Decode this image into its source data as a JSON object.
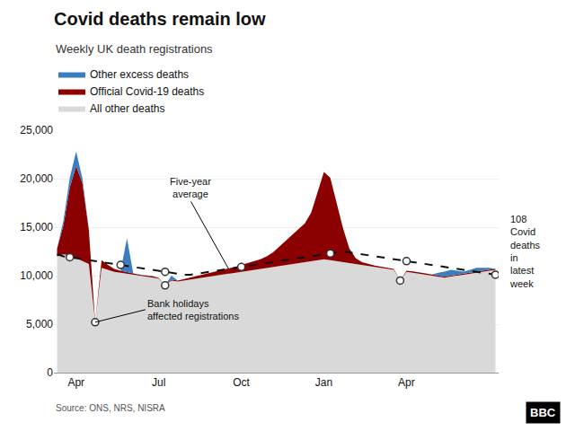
{
  "chart_data": {
    "type": "area",
    "stacked": true,
    "title": "Covid deaths remain low",
    "subtitle": "Weekly UK death registrations",
    "source": "Source: ONS, NRS, NISRA",
    "x": [
      0,
      1,
      2,
      3,
      4,
      5,
      6,
      7,
      8,
      9,
      10,
      11,
      12,
      13,
      14,
      15,
      16,
      17,
      18,
      19,
      20,
      21,
      22,
      23,
      24,
      25,
      26,
      27,
      28,
      29,
      30,
      31,
      32,
      33,
      34,
      35,
      36,
      37,
      38,
      39,
      40,
      41,
      42,
      43,
      44,
      45,
      46,
      47,
      48,
      49,
      50,
      51,
      52,
      53,
      54,
      55,
      56,
      57,
      58,
      59,
      60,
      61,
      62,
      63,
      64,
      65,
      66,
      67,
      68,
      69
    ],
    "xlim": [
      -0.5,
      69.5
    ],
    "xticks": [
      {
        "value": 3,
        "label": "Apr"
      },
      {
        "value": 16,
        "label": "Jul"
      },
      {
        "value": 29,
        "label": "Oct"
      },
      {
        "value": 42,
        "label": "Jan"
      },
      {
        "value": 55,
        "label": "Apr"
      }
    ],
    "ylim": [
      0,
      25000
    ],
    "yticks": [
      0,
      {
        "value": 5000,
        "label": "5,000"
      },
      {
        "value": 10000,
        "label": "10,000"
      },
      {
        "value": 15000,
        "label": "15,000"
      },
      {
        "value": 20000,
        "label": "20,000"
      },
      {
        "value": 25000,
        "label": "25,000"
      }
    ],
    "grid": "y",
    "series": [
      {
        "name": "All other deaths",
        "color": "#d9d9d9",
        "type": "area",
        "values": [
          12000,
          12200,
          12100,
          11800,
          11500,
          11200,
          5200,
          10800,
          10600,
          10400,
          10300,
          10200,
          10100,
          10000,
          9900,
          9800,
          9700,
          9000,
          9500,
          9400,
          9500,
          9600,
          9700,
          9800,
          9900,
          10000,
          10100,
          10200,
          10300,
          10400,
          10500,
          10600,
          10700,
          10800,
          10900,
          11000,
          11100,
          11200,
          11300,
          11400,
          11500,
          11600,
          11700,
          11600,
          11500,
          11400,
          11300,
          11200,
          11100,
          11000,
          10900,
          10800,
          10700,
          10600,
          9500,
          10400,
          10300,
          10200,
          10100,
          10000,
          9900,
          9800,
          9900,
          10000,
          10100,
          10200,
          10300,
          10400,
          10500,
          10600
        ]
      },
      {
        "name": "Official Covid-19 deaths",
        "color": "#8B0000",
        "type": "area",
        "values": [
          800,
          3000,
          7000,
          9500,
          8000,
          3500,
          0,
          800,
          500,
          300,
          200,
          150,
          100,
          100,
          100,
          150,
          80,
          0,
          100,
          100,
          150,
          200,
          250,
          300,
          350,
          400,
          450,
          500,
          600,
          700,
          800,
          900,
          1000,
          1200,
          1500,
          2000,
          2500,
          3000,
          3500,
          4000,
          5000,
          7000,
          9000,
          8500,
          6000,
          3500,
          1500,
          600,
          300,
          200,
          150,
          120,
          110,
          100,
          0,
          110,
          130,
          150,
          130,
          120,
          110,
          108,
          108,
          108,
          108,
          108,
          108,
          108,
          108,
          108
        ]
      },
      {
        "name": "Other excess deaths",
        "color": "#3a7ebf",
        "type": "area",
        "values": [
          0,
          500,
          1000,
          1500,
          500,
          0,
          0,
          0,
          0,
          0,
          0,
          3500,
          0,
          0,
          0,
          0,
          0,
          0,
          400,
          0,
          0,
          0,
          0,
          0,
          0,
          0,
          0,
          0,
          0,
          0,
          0,
          0,
          0,
          0,
          0,
          0,
          0,
          0,
          0,
          0,
          0,
          0,
          0,
          0,
          0,
          0,
          0,
          0,
          0,
          0,
          0,
          0,
          0,
          0,
          0,
          0,
          0,
          0,
          0,
          0,
          300,
          500,
          600,
          400,
          200,
          300,
          400,
          300,
          200,
          0
        ]
      },
      {
        "color": "#111111",
        "type": "line",
        "line_style": "dashed",
        "values": [
          12200,
          12000,
          11900,
          11800,
          11700,
          11600,
          11500,
          11400,
          11300,
          11200,
          11100,
          11000,
          10900,
          10800,
          10700,
          10600,
          10500,
          10400,
          10300,
          10200,
          10100,
          10100,
          10200,
          10300,
          10400,
          10500,
          10600,
          10700,
          10800,
          10900,
          11000,
          11100,
          11200,
          11300,
          11400,
          11500,
          11600,
          11700,
          11800,
          11900,
          12000,
          12100,
          12200,
          12300,
          12400,
          12500,
          12400,
          12300,
          12200,
          12100,
          12000,
          11900,
          11800,
          11700,
          11600,
          11500,
          11400,
          11300,
          11200,
          11100,
          11000,
          10900,
          10800,
          10700,
          10600,
          10500,
          10400,
          10300,
          10200,
          10100
        ]
      },
      {
        "color": "#333333",
        "type": "scatter",
        "marker": "circle",
        "x": [
          6,
          17,
          54
        ],
        "values": [
          5200,
          9000,
          9500
        ]
      },
      {
        "color": "#333333",
        "type": "scatter",
        "marker": "circle",
        "x": [
          2,
          10,
          17,
          29,
          43,
          55,
          69
        ],
        "values": [
          11900,
          11100,
          10400,
          10900,
          12300,
          11500,
          10100
        ]
      }
    ],
    "annotations": [
      {
        "text": "Five-year\naverage",
        "x": 27,
        "y": 10700
      },
      {
        "text": "Bank holidays\naffected registrations",
        "x": 6,
        "y": 5200
      },
      {
        "text": "108\nCovid\ndeaths\nin\nlatest\nweek"
      },
      {
        "text": "BBC"
      }
    ]
  }
}
